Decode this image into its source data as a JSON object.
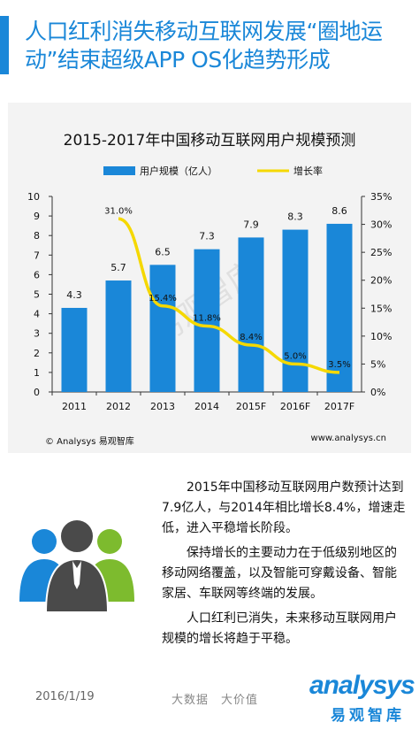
{
  "header": {
    "title": "人口红利消失移动互联网发展“圈地运动”结束超级APP OS化趋势形成"
  },
  "chart": {
    "title": "2015-2017年中国移动互联网用户规模预测",
    "footer_left": "© Analysys 易观智库",
    "footer_right": "www.analysys.cn",
    "watermark": "易观智库"
  },
  "chart_data": {
    "type": "bar",
    "title": "2015-2017年中国移动互联网用户规模预测",
    "categories": [
      "2011",
      "2012",
      "2013",
      "2014",
      "2015F",
      "2016F",
      "2017F"
    ],
    "series": [
      {
        "name": "用户规模（亿人）",
        "type": "bar",
        "axis": "left",
        "values": [
          4.3,
          5.7,
          6.5,
          7.3,
          7.9,
          8.3,
          8.6
        ],
        "color": "#1a87d8"
      },
      {
        "name": "增长率",
        "type": "line",
        "axis": "right",
        "values": [
          null,
          31.0,
          15.4,
          11.8,
          8.4,
          5.0,
          3.5
        ],
        "color": "#f5d800"
      }
    ],
    "bar_labels": [
      "4.3",
      "5.7",
      "6.5",
      "7.3",
      "7.9",
      "8.3",
      "8.6"
    ],
    "line_labels": [
      "",
      "31.0%",
      "15.4%",
      "11.8%",
      "8.4%",
      "5.0%",
      "3.5%"
    ],
    "y_left": {
      "min": 0,
      "max": 10,
      "ticks": [
        "0",
        "1",
        "2",
        "3",
        "4",
        "5",
        "6",
        "7",
        "8",
        "9",
        "10"
      ]
    },
    "y_right": {
      "min": 0,
      "max": 35,
      "ticks": [
        "0%",
        "5%",
        "10%",
        "15%",
        "20%",
        "25%",
        "30%",
        "35%"
      ]
    },
    "legend_position": "top",
    "grid": false
  },
  "body": {
    "paragraphs": [
      "2015年中国移动互联网用户数预计达到7.9亿人，与2014年相比增长8.4%，增速走低，进入平稳增长阶段。",
      "保持增长的主要动力在于低级别地区的移动网络覆盖，以及智能可穿戴设备、智能家居、车联网等终端的发展。",
      "人口红利已消失，未来移动互联网用户规模的增长将趋于平稳。"
    ]
  },
  "footer": {
    "date": "2016/1/19",
    "slogan": "大数据　大价值",
    "logo_word": "analysys",
    "logo_sub": "易观智库"
  },
  "colors": {
    "accent": "#1a87d8",
    "line": "#f5d800",
    "people_blue": "#1a87d8",
    "people_green": "#7dbb2e",
    "people_dark": "#4a4a4a"
  }
}
